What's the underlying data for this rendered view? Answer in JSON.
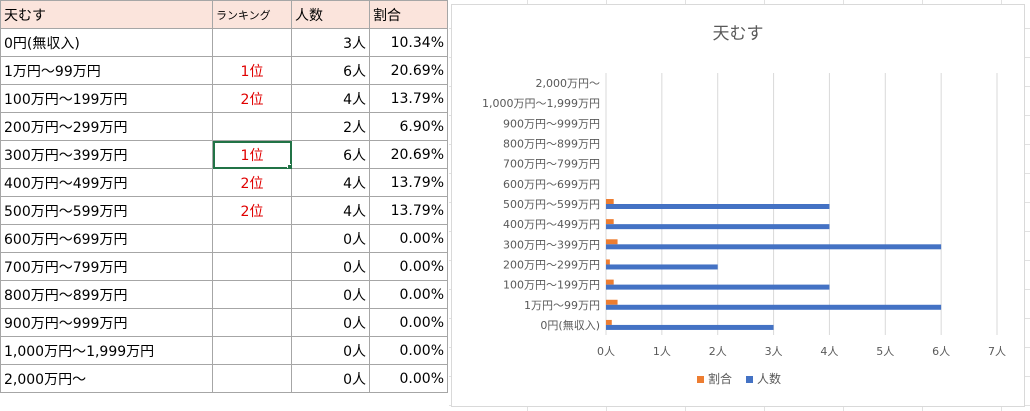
{
  "sheet": {
    "header": [
      "天むす",
      "ランキング",
      "人数",
      "割合"
    ],
    "rows": [
      [
        "0円(無収入)",
        "",
        "3人",
        "10.34%"
      ],
      [
        "1万円～99万円",
        "1位",
        "6人",
        "20.69%"
      ],
      [
        "100万円～199万円",
        "2位",
        "4人",
        "13.79%"
      ],
      [
        "200万円～299万円",
        "",
        "2人",
        "6.90%"
      ],
      [
        "300万円～399万円",
        "1位",
        "6人",
        "20.69%"
      ],
      [
        "400万円～499万円",
        "2位",
        "4人",
        "13.79%"
      ],
      [
        "500万円～599万円",
        "2位",
        "4人",
        "13.79%"
      ],
      [
        "600万円～699万円",
        "",
        "0人",
        "0.00%"
      ],
      [
        "700万円～799万円",
        "",
        "0人",
        "0.00%"
      ],
      [
        "800万円～899万円",
        "",
        "0人",
        "0.00%"
      ],
      [
        "900万円～999万円",
        "",
        "0人",
        "0.00%"
      ],
      [
        "1,000万円～1,999万円",
        "",
        "0人",
        "0.00%"
      ],
      [
        "2,000万円～",
        "",
        "0人",
        "0.00%"
      ]
    ]
  },
  "colors": {
    "header_fill": "#fbe4dc",
    "rank_text": "#e00000",
    "series_count": "#4472c4",
    "series_ratio": "#ed7d31",
    "active_cell": "#217346"
  },
  "chart_data": {
    "type": "bar",
    "orientation": "horizontal",
    "title": "天むす",
    "categories": [
      "0円(無収入)",
      "1万円～99万円",
      "100万円～199万円",
      "200万円～299万円",
      "300万円～399万円",
      "400万円～499万円",
      "500万円～599万円",
      "600万円～699万円",
      "700万円～799万円",
      "800万円～899万円",
      "900万円～999万円",
      "1,000万円～1,999万円",
      "2,000万円～"
    ],
    "series": [
      {
        "name": "割合",
        "values": [
          0.1034,
          0.2069,
          0.1379,
          0.069,
          0.2069,
          0.1379,
          0.1379,
          0,
          0,
          0,
          0,
          0,
          0
        ]
      },
      {
        "name": "人数",
        "values": [
          3,
          6,
          4,
          2,
          6,
          4,
          4,
          0,
          0,
          0,
          0,
          0,
          0
        ]
      }
    ],
    "xlim": [
      0,
      7
    ],
    "xticks": [
      "0人",
      "1人",
      "2人",
      "3人",
      "4人",
      "5人",
      "6人",
      "7人"
    ],
    "grid": true,
    "legend_position": "bottom"
  }
}
